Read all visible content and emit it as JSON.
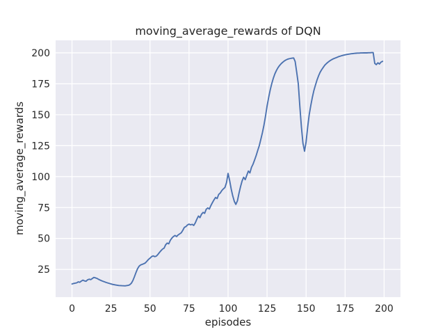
{
  "chart_data": {
    "type": "line",
    "title": "moving_average_rewards of DQN",
    "xlabel": "episodes",
    "ylabel": "moving_average_rewards",
    "x_ticks": [
      0,
      25,
      50,
      75,
      100,
      125,
      150,
      175,
      200
    ],
    "y_ticks": [
      25,
      50,
      75,
      100,
      125,
      150,
      175,
      200
    ],
    "xlim": [
      -10.5,
      210.5
    ],
    "ylim": [
      2.6,
      210.1
    ],
    "grid": true,
    "legend": "none",
    "style": {
      "figure_bg": "#ffffff",
      "axes_bg": "#eaeaf2",
      "grid_color": "#ffffff",
      "line_color": "#4c72b0",
      "text_color": "#262626"
    },
    "series": [
      {
        "name": "moving_average_rewards",
        "points": [
          [
            0,
            13.2
          ],
          [
            1,
            13.6
          ],
          [
            2,
            13.9
          ],
          [
            3,
            14.1
          ],
          [
            4,
            14.9
          ],
          [
            5,
            14.6
          ],
          [
            6,
            15.6
          ],
          [
            7,
            16.3
          ],
          [
            8,
            15.7
          ],
          [
            9,
            15.4
          ],
          [
            10,
            16.6
          ],
          [
            11,
            17.1
          ],
          [
            12,
            16.7
          ],
          [
            13,
            17.6
          ],
          [
            14,
            18.5
          ],
          [
            15,
            18.2
          ],
          [
            16,
            17.7
          ],
          [
            17,
            17.0
          ],
          [
            18,
            16.4
          ],
          [
            19,
            15.8
          ],
          [
            20,
            15.3
          ],
          [
            22,
            14.4
          ],
          [
            24,
            13.6
          ],
          [
            26,
            12.9
          ],
          [
            28,
            12.4
          ],
          [
            30,
            12.0
          ],
          [
            32,
            11.8
          ],
          [
            34,
            11.7
          ],
          [
            36,
            12.1
          ],
          [
            37,
            12.6
          ],
          [
            38,
            13.8
          ],
          [
            39,
            16.0
          ],
          [
            40,
            19.0
          ],
          [
            41,
            22.5
          ],
          [
            42,
            25.5
          ],
          [
            43,
            27.6
          ],
          [
            44,
            28.6
          ],
          [
            45,
            29.1
          ],
          [
            46,
            29.6
          ],
          [
            47,
            30.2
          ],
          [
            48,
            31.6
          ],
          [
            49,
            33.0
          ],
          [
            50,
            34.1
          ],
          [
            51,
            35.3
          ],
          [
            52,
            35.9
          ],
          [
            53,
            35.3
          ],
          [
            54,
            35.7
          ],
          [
            55,
            37.0
          ],
          [
            56,
            38.6
          ],
          [
            57,
            40.1
          ],
          [
            58,
            41.4
          ],
          [
            59,
            42.2
          ],
          [
            60,
            44.9
          ],
          [
            61,
            46.3
          ],
          [
            62,
            45.7
          ],
          [
            63,
            48.6
          ],
          [
            64,
            50.3
          ],
          [
            65,
            51.6
          ],
          [
            66,
            52.4
          ],
          [
            67,
            51.6
          ],
          [
            68,
            52.9
          ],
          [
            69,
            53.7
          ],
          [
            70,
            54.6
          ],
          [
            71,
            56.6
          ],
          [
            72,
            59.0
          ],
          [
            73,
            59.6
          ],
          [
            74,
            60.9
          ],
          [
            75,
            61.6
          ],
          [
            76,
            61.0
          ],
          [
            77,
            61.4
          ],
          [
            78,
            60.5
          ],
          [
            79,
            62.6
          ],
          [
            80,
            65.6
          ],
          [
            81,
            68.1
          ],
          [
            82,
            66.9
          ],
          [
            83,
            69.6
          ],
          [
            84,
            71.1
          ],
          [
            85,
            70.3
          ],
          [
            86,
            73.6
          ],
          [
            87,
            74.7
          ],
          [
            88,
            73.8
          ],
          [
            89,
            76.6
          ],
          [
            90,
            79.1
          ],
          [
            91,
            81.2
          ],
          [
            92,
            83.1
          ],
          [
            93,
            82.3
          ],
          [
            94,
            85.6
          ],
          [
            95,
            86.8
          ],
          [
            96,
            88.7
          ],
          [
            97,
            90.1
          ],
          [
            98,
            91.2
          ],
          [
            99,
            95.2
          ],
          [
            100,
            102.6
          ],
          [
            101,
            97.0
          ],
          [
            102,
            90.0
          ],
          [
            103,
            84.5
          ],
          [
            104,
            80.0
          ],
          [
            105,
            77.5
          ],
          [
            106,
            80.5
          ],
          [
            107,
            86.5
          ],
          [
            108,
            92.0
          ],
          [
            109,
            96.5
          ],
          [
            110,
            99.5
          ],
          [
            111,
            97.5
          ],
          [
            112,
            101.0
          ],
          [
            113,
            104.5
          ],
          [
            114,
            103.0
          ],
          [
            115,
            107.5
          ],
          [
            116,
            110.0
          ],
          [
            117,
            113.5
          ],
          [
            118,
            117.0
          ],
          [
            119,
            121.0
          ],
          [
            120,
            125.0
          ],
          [
            121,
            130.0
          ],
          [
            122,
            135.5
          ],
          [
            123,
            141.5
          ],
          [
            124,
            149.0
          ],
          [
            125,
            157.0
          ],
          [
            126,
            164.0
          ],
          [
            127,
            170.0
          ],
          [
            128,
            175.0
          ],
          [
            129,
            179.5
          ],
          [
            130,
            183.0
          ],
          [
            131,
            185.8
          ],
          [
            132,
            188.0
          ],
          [
            133,
            189.8
          ],
          [
            134,
            191.2
          ],
          [
            135,
            192.4
          ],
          [
            136,
            193.4
          ],
          [
            137,
            194.2
          ],
          [
            138,
            194.8
          ],
          [
            139,
            195.2
          ],
          [
            140,
            195.5
          ],
          [
            141,
            195.7
          ],
          [
            142,
            195.9
          ],
          [
            143,
            193.0
          ],
          [
            144,
            184.0
          ],
          [
            145,
            175.0
          ],
          [
            146,
            157.0
          ],
          [
            147,
            140.0
          ],
          [
            148,
            127.0
          ],
          [
            149,
            120.5
          ],
          [
            150,
            128.0
          ],
          [
            151,
            140.0
          ],
          [
            152,
            150.0
          ],
          [
            153,
            157.5
          ],
          [
            154,
            164.0
          ],
          [
            155,
            169.5
          ],
          [
            156,
            174.0
          ],
          [
            157,
            178.0
          ],
          [
            158,
            181.5
          ],
          [
            159,
            184.3
          ],
          [
            160,
            186.5
          ],
          [
            161,
            188.3
          ],
          [
            162,
            190.0
          ],
          [
            163,
            191.3
          ],
          [
            164,
            192.4
          ],
          [
            165,
            193.4
          ],
          [
            166,
            194.2
          ],
          [
            167,
            194.9
          ],
          [
            168,
            195.5
          ],
          [
            169,
            196.0
          ],
          [
            170,
            196.5
          ],
          [
            171,
            197.0
          ],
          [
            172,
            197.4
          ],
          [
            173,
            197.8
          ],
          [
            174,
            198.1
          ],
          [
            175,
            198.4
          ],
          [
            176,
            198.7
          ],
          [
            177,
            198.9
          ],
          [
            178,
            199.1
          ],
          [
            179,
            199.3
          ],
          [
            180,
            199.4
          ],
          [
            181,
            199.6
          ],
          [
            182,
            199.7
          ],
          [
            183,
            199.8
          ],
          [
            184,
            199.8
          ],
          [
            185,
            199.9
          ],
          [
            186,
            199.9
          ],
          [
            187,
            200.0
          ],
          [
            188,
            200.0
          ],
          [
            189,
            200.0
          ],
          [
            190,
            200.1
          ],
          [
            191,
            200.1
          ],
          [
            192,
            200.2
          ],
          [
            193,
            200.2
          ],
          [
            194,
            191.5
          ],
          [
            195,
            190.5
          ],
          [
            196,
            192.0
          ],
          [
            197,
            191.0
          ],
          [
            198,
            192.5
          ],
          [
            199,
            193.2
          ]
        ]
      }
    ]
  }
}
